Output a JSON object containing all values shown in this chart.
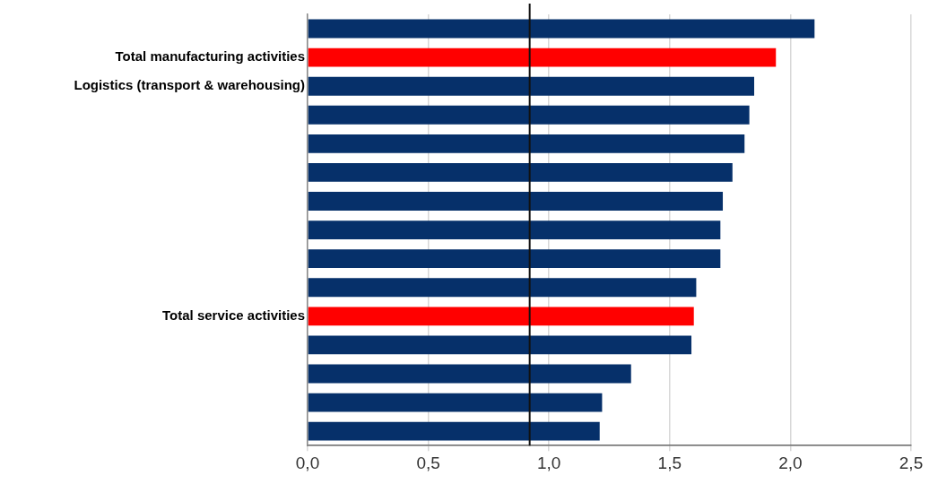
{
  "chart_data": {
    "type": "bar",
    "orientation": "horizontal",
    "categories": [
      null,
      "Total manufacturing activities",
      "Logistics (transport & warehousing)",
      null,
      null,
      null,
      null,
      null,
      null,
      null,
      "Total service activities",
      null,
      null,
      null,
      null
    ],
    "values": [
      2.1,
      1.94,
      1.85,
      1.83,
      1.81,
      1.76,
      1.72,
      1.71,
      1.71,
      1.61,
      1.6,
      1.59,
      1.34,
      1.22,
      1.21
    ],
    "colors": [
      "#06306a",
      "#ff0000",
      "#06306a",
      "#06306a",
      "#06306a",
      "#06306a",
      "#06306a",
      "#06306a",
      "#06306a",
      "#06306a",
      "#ff0000",
      "#06306a",
      "#06306a",
      "#06306a",
      "#06306a"
    ],
    "xlim": [
      0,
      2.5
    ],
    "xticks": [
      {
        "value": 0,
        "label": "0,0"
      },
      {
        "value": 0.5,
        "label": "0,5"
      },
      {
        "value": 1,
        "label": "1,0"
      },
      {
        "value": 1.5,
        "label": "1,5"
      },
      {
        "value": 2,
        "label": "2,0"
      },
      {
        "value": 2.5,
        "label": "2,5"
      }
    ],
    "ref_lines": [
      {
        "axis": "x",
        "value": 0.92,
        "color": "#111111"
      }
    ],
    "grid": "x",
    "legend": false
  }
}
